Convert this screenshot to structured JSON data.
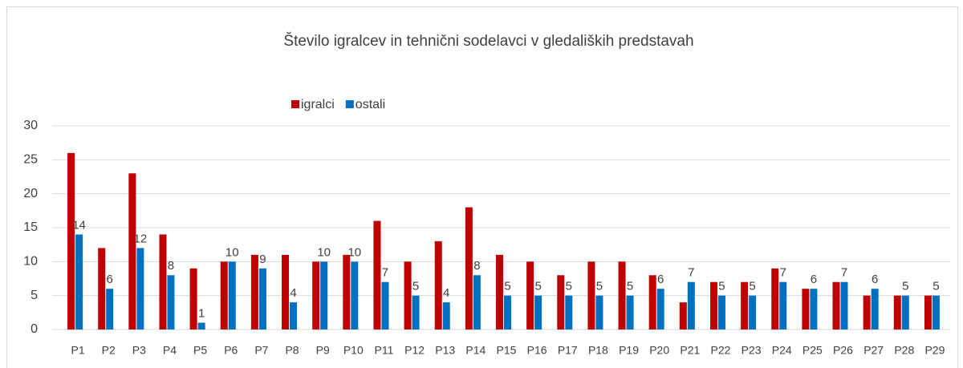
{
  "chart_data": {
    "type": "bar",
    "title": "Število igralcev in tehnični sodelavci v gledaliških predstavah",
    "categories": [
      "P1",
      "P2",
      "P3",
      "P4",
      "P5",
      "P6",
      "P7",
      "P8",
      "P9",
      "P10",
      "P11",
      "P12",
      "P13",
      "P14",
      "P15",
      "P16",
      "P17",
      "P18",
      "P19",
      "P20",
      "P21",
      "P22",
      "P23",
      "P24",
      "P25",
      "P26",
      "P27",
      "P28",
      "P29"
    ],
    "series": [
      {
        "name": "igralci",
        "color": "#c00000",
        "data_labels": false,
        "values": [
          26,
          12,
          23,
          14,
          9,
          10,
          11,
          11,
          10,
          11,
          16,
          10,
          13,
          18,
          11,
          10,
          8,
          10,
          10,
          8,
          4,
          7,
          7,
          9,
          6,
          7,
          5,
          5,
          5
        ]
      },
      {
        "name": "ostali",
        "color": "#0070c0",
        "data_labels": true,
        "values": [
          14,
          6,
          12,
          8,
          1,
          10,
          9,
          4,
          10,
          10,
          7,
          5,
          4,
          8,
          5,
          5,
          5,
          5,
          5,
          6,
          7,
          5,
          5,
          7,
          6,
          7,
          6,
          5,
          5
        ]
      }
    ],
    "ylim": [
      0,
      30
    ],
    "yticks": [
      0,
      5,
      10,
      15,
      20,
      25,
      30
    ],
    "grid": true,
    "legend": "top"
  }
}
